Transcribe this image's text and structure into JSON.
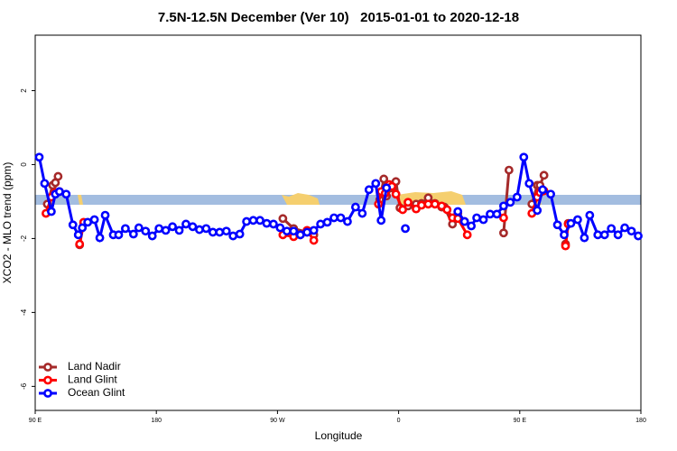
{
  "chart_data": {
    "type": "line",
    "title": "7.5N-12.5N December (Ver 10)   2015-01-01 to 2020-12-18",
    "xlabel": "Longitude",
    "ylabel": "XCO2 - MLO trend (ppm)",
    "xlim": [
      90,
      540
    ],
    "xticks": [
      {
        "value": 90,
        "label": "90 E"
      },
      {
        "value": 180,
        "label": "180"
      },
      {
        "value": 270,
        "label": "90 W"
      },
      {
        "value": 360,
        "label": "0"
      },
      {
        "value": 450,
        "label": "90 E"
      },
      {
        "value": 540,
        "label": "180"
      }
    ],
    "ylim": [
      -6.65,
      3.5
    ],
    "yticks": [
      2,
      0,
      -2,
      -4,
      -6
    ],
    "legend": "bottom-left",
    "series": [
      {
        "name": "Land Nadir",
        "color": "#a52a2a",
        "x": [
          99,
          103,
          105,
          107,
          null,
          123,
          126,
          null,
          274,
          282,
          292,
          297,
          null,
          346,
          349,
          351,
          355,
          358,
          361,
          367,
          373,
          377,
          382,
          387,
          392,
          394,
          400,
          404,
          409,
          null,
          438,
          442,
          null,
          459,
          463,
          465,
          468,
          null,
          484,
          486
        ],
        "values": [
          -1.07,
          -0.56,
          -0.49,
          -0.32,
          null,
          -2.17,
          -1.59,
          null,
          -1.46,
          -1.73,
          -1.83,
          -1.9,
          null,
          -0.95,
          -0.39,
          -0.85,
          -0.63,
          -0.46,
          -1.17,
          -1.12,
          -1.07,
          -1.05,
          -0.9,
          -1.05,
          -1.15,
          -1.15,
          -1.61,
          -1.32,
          -1.54,
          null,
          -1.85,
          -0.15,
          null,
          -1.07,
          -0.56,
          -0.56,
          -0.29,
          null,
          -2.15,
          -1.59
        ]
      },
      {
        "name": "Land Glint",
        "color": "#ff0000",
        "x": [
          98,
          102,
          105,
          108,
          null,
          123,
          126,
          null,
          274,
          282,
          287,
          292,
          297,
          null,
          345,
          347,
          350,
          353,
          355,
          358,
          363,
          367,
          373,
          377,
          382,
          387,
          392,
          396,
          400,
          404,
          411,
          null,
          438,
          null,
          459,
          463,
          465,
          468,
          null,
          484,
          486
        ],
        "values": [
          -1.32,
          -0.88,
          -0.76,
          -0.73,
          null,
          -2.15,
          -1.56,
          null,
          -1.9,
          -1.95,
          -1.9,
          -1.78,
          -2.05,
          null,
          -1.07,
          -0.73,
          -0.78,
          -0.54,
          -0.59,
          -0.8,
          -1.22,
          -1.02,
          -1.2,
          -1.1,
          -1.07,
          -1.07,
          -1.12,
          -1.22,
          -1.44,
          -1.46,
          -1.9,
          null,
          -1.44,
          null,
          -1.32,
          -0.88,
          -0.76,
          -0.71,
          null,
          -2.2,
          -1.61
        ]
      },
      {
        "name": "Ocean Glint",
        "color": "#0000ff",
        "x": [
          93,
          97,
          102,
          105,
          108,
          113,
          118,
          122,
          125,
          129,
          134,
          138,
          142,
          148,
          152,
          157,
          163,
          167,
          172,
          177,
          182,
          187,
          192,
          197,
          202,
          207,
          212,
          217,
          222,
          227,
          232,
          237,
          242,
          247,
          252,
          257,
          262,
          267,
          272,
          277,
          282,
          287,
          292,
          297,
          302,
          307,
          312,
          317,
          322,
          328,
          333,
          338,
          343,
          347,
          351,
          null,
          365,
          null,
          404,
          409,
          414,
          418,
          423,
          428,
          433,
          438,
          443,
          448,
          453,
          457,
          463,
          467,
          473,
          478,
          483,
          488,
          493,
          498,
          502,
          508,
          513,
          518,
          523,
          528,
          533,
          538
        ],
        "values": [
          0.2,
          -0.51,
          -1.27,
          -0.8,
          -0.73,
          -0.8,
          -1.63,
          -1.9,
          -1.71,
          -1.56,
          -1.49,
          -1.98,
          -1.37,
          -1.9,
          -1.9,
          -1.73,
          -1.88,
          -1.71,
          -1.8,
          -1.93,
          -1.73,
          -1.78,
          -1.68,
          -1.78,
          -1.61,
          -1.68,
          -1.76,
          -1.73,
          -1.83,
          -1.83,
          -1.8,
          -1.93,
          -1.88,
          -1.54,
          -1.51,
          -1.51,
          -1.59,
          -1.61,
          -1.71,
          -1.8,
          -1.8,
          -1.9,
          -1.83,
          -1.78,
          -1.61,
          -1.56,
          -1.44,
          -1.44,
          -1.54,
          -1.15,
          -1.32,
          -0.68,
          -0.51,
          -1.51,
          -0.63,
          null,
          -1.73,
          null,
          -1.27,
          -1.54,
          -1.66,
          -1.44,
          -1.49,
          -1.34,
          -1.34,
          -1.12,
          -1.02,
          -0.88,
          0.2,
          -0.51,
          -1.24,
          -0.68,
          -0.8,
          -1.63,
          -1.9,
          -1.59,
          -1.49,
          -1.98,
          -1.37,
          -1.9,
          -1.9,
          -1.73,
          -1.9,
          -1.71,
          -1.8,
          -1.93
        ]
      }
    ]
  }
}
